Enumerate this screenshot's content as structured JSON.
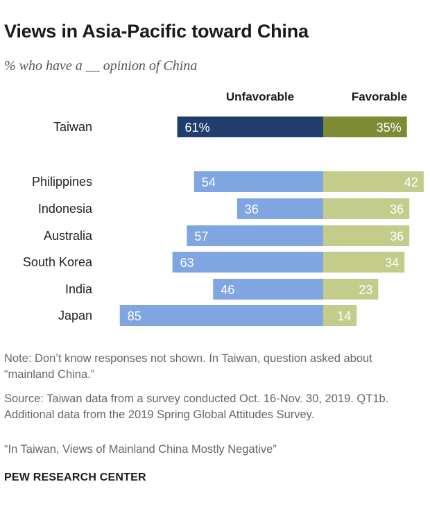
{
  "title": "Views in Asia-Pacific toward China",
  "subtitle": "% who have a __ opinion of China",
  "notes": {
    "note": "Note: Don’t know responses not shown. In Taiwan, question asked about “mainland China.”",
    "source": "Source: Taiwan data from a survey conducted Oct. 16-Nov. 30, 2019. QT1b. Additional data from the 2019 Spring Global Attitudes Survey.",
    "report": "“In Taiwan, Views of Mainland China Mostly Negative”"
  },
  "brand": "PEW RESEARCH CENTER",
  "colors": {
    "taiwan_unfavorable": "#1f3e6e",
    "taiwan_favorable": "#7f8a35",
    "unfavorable": "#7fa6e0",
    "favorable": "#c3cc8a"
  },
  "chart_data": {
    "type": "bar",
    "orientation": "horizontal-diverging",
    "categories": [
      "Taiwan",
      "Philippines",
      "Indonesia",
      "Australia",
      "South Korea",
      "India",
      "Japan"
    ],
    "series": [
      {
        "name": "Unfavorable",
        "values": [
          61,
          54,
          36,
          57,
          63,
          46,
          85
        ],
        "labels": [
          "61%",
          "54",
          "36",
          "57",
          "63",
          "46",
          "85"
        ]
      },
      {
        "name": "Favorable",
        "values": [
          35,
          42,
          36,
          36,
          34,
          23,
          14
        ],
        "labels": [
          "35%",
          "42",
          "36",
          "36",
          "34",
          "23",
          "14"
        ]
      }
    ],
    "title": "Views in Asia-Pacific toward China",
    "xlabel": "",
    "ylabel": "",
    "legend": "top"
  }
}
